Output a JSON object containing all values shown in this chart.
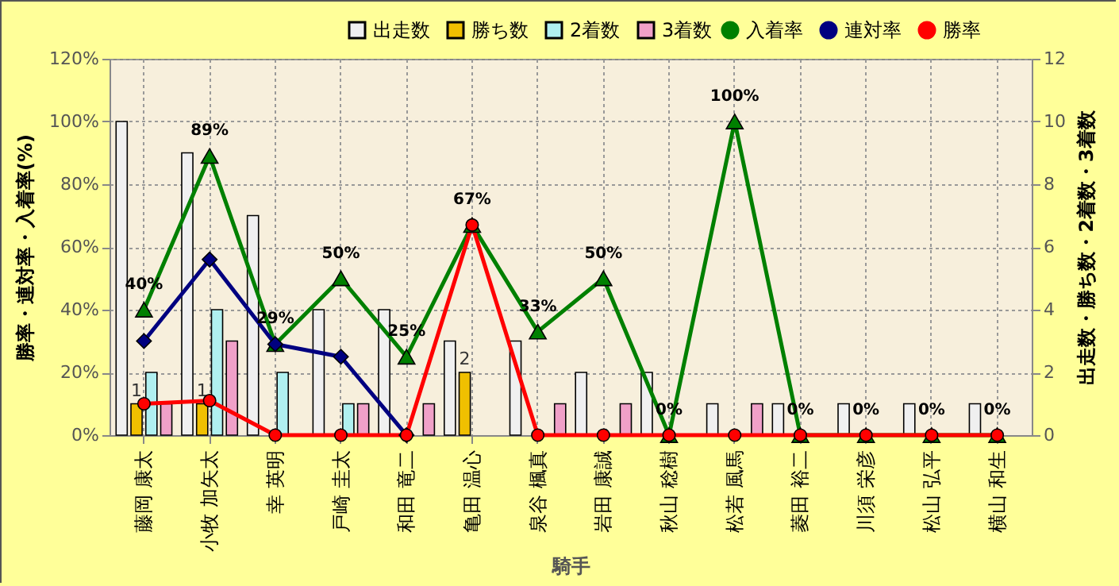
{
  "chart_data": {
    "type": "bar",
    "xlabel": "騎手",
    "ylabel": "勝率・連対率・入着率(%)",
    "y2label": "出走数・勝ち数・2着数・3着数",
    "categories": [
      "藤岡 康太",
      "小牧 加矢太",
      "幸 英明",
      "戸崎 圭太",
      "和田 竜二",
      "亀田 温心",
      "泉谷 楓真",
      "岩田 康誠",
      "秋山 稔樹",
      "松若 風馬",
      "菱田 裕二",
      "川須 栄彦",
      "松山 弘平",
      "横山 和生"
    ],
    "series": [
      {
        "name": "出走数",
        "axis": "y2",
        "color": "#f0f0f0",
        "values": [
          10,
          9,
          7,
          4,
          4,
          3,
          3,
          2,
          2,
          1,
          1,
          1,
          1,
          1
        ]
      },
      {
        "name": "勝ち数",
        "axis": "y2",
        "color": "#f0c000",
        "values": [
          1,
          1,
          0,
          0,
          0,
          2,
          0,
          0,
          0,
          0,
          0,
          0,
          0,
          0
        ],
        "value_labels": [
          "1",
          "1",
          null,
          null,
          null,
          "2",
          null,
          null,
          null,
          null,
          null,
          null,
          null,
          null
        ]
      },
      {
        "name": "2着数",
        "axis": "y2",
        "color": "#b0f0f0",
        "values": [
          2,
          4,
          2,
          1,
          0,
          0,
          0,
          0,
          0,
          0,
          0,
          0,
          0,
          0
        ]
      },
      {
        "name": "3着数",
        "axis": "y2",
        "color": "#f0a0c8",
        "values": [
          1,
          3,
          0,
          1,
          1,
          0,
          1,
          1,
          0,
          1,
          0,
          0,
          0,
          0
        ]
      },
      {
        "name": "入着率",
        "type": "line",
        "axis": "y",
        "color": "#008000",
        "marker": "triangle",
        "values": [
          40,
          89,
          29,
          50,
          25,
          67,
          33,
          50,
          0,
          100,
          0,
          0,
          0,
          0
        ],
        "value_labels": [
          "40%",
          "89%",
          "29%",
          "50%",
          "25%",
          "67%",
          "33%",
          "50%",
          "0%",
          "100%",
          "0%",
          "0%",
          "0%",
          "0%"
        ]
      },
      {
        "name": "連対率",
        "type": "line",
        "axis": "y",
        "color": "#000080",
        "marker": "diamond",
        "values": [
          30,
          56,
          29,
          25,
          0,
          null,
          null,
          null,
          null,
          null,
          null,
          null,
          null,
          null
        ]
      },
      {
        "name": "勝率",
        "type": "line",
        "axis": "y",
        "color": "#ff0000",
        "marker": "circle",
        "values": [
          10,
          11,
          0,
          0,
          0,
          67,
          0,
          0,
          0,
          0,
          0,
          0,
          0,
          0
        ]
      }
    ],
    "ylim": [
      0,
      120
    ],
    "yticks": [
      {
        "value": 0,
        "label": "0%"
      },
      {
        "value": 20,
        "label": "20%"
      },
      {
        "value": 40,
        "label": "40%"
      },
      {
        "value": 60,
        "label": "60%"
      },
      {
        "value": 80,
        "label": "80%"
      },
      {
        "value": 100,
        "label": "100%"
      },
      {
        "value": 120,
        "label": "120%"
      }
    ],
    "y2lim": [
      0,
      12
    ],
    "y2ticks": [
      0,
      2,
      4,
      6,
      8,
      10,
      12
    ],
    "grid": true,
    "legend": "top"
  }
}
